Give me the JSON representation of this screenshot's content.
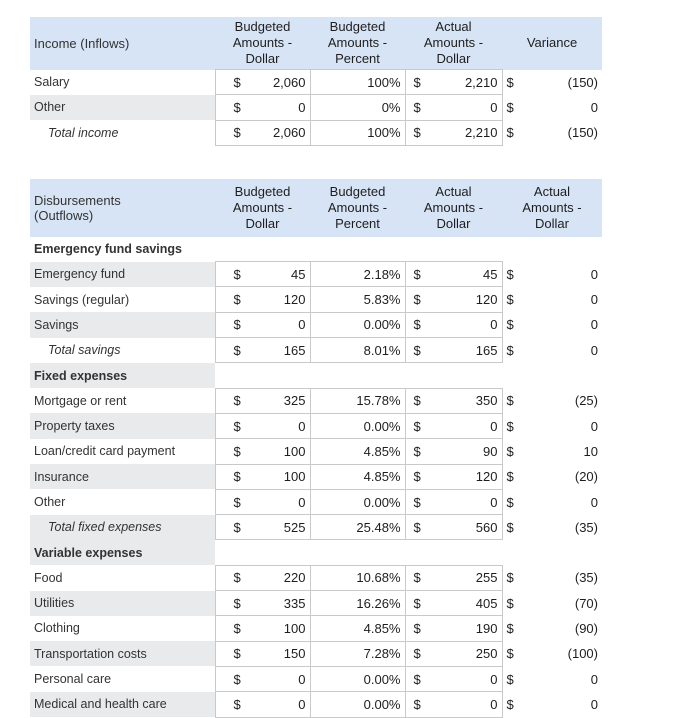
{
  "income": {
    "header": {
      "label": "Income (Inflows)",
      "col1": [
        "Budgeted",
        "Amounts -",
        "Dollar"
      ],
      "col2": [
        "Budgeted",
        "Amounts -",
        "Percent"
      ],
      "col3": [
        "Actual",
        "Amounts -",
        "Dollar"
      ],
      "col4": [
        "Variance"
      ]
    },
    "rows": [
      {
        "label": "Salary",
        "bd_sign": "$",
        "bd": "2,060",
        "bp": "100%",
        "ad_sign": "$",
        "ad": "2,210",
        "var_sign": "$",
        "var": "(150)"
      },
      {
        "label": "Other",
        "bd_sign": "$",
        "bd": "0",
        "bp": "0%",
        "ad_sign": "$",
        "ad": "0",
        "var_sign": "$",
        "var": "0"
      },
      {
        "label": "Total income",
        "bd_sign": "$",
        "bd": "2,060",
        "bp": "100%",
        "ad_sign": "$",
        "ad": "2,210",
        "var_sign": "$",
        "var": "(150)"
      }
    ]
  },
  "outflows": {
    "header": {
      "label": [
        "Disbursements",
        "(Outflows)"
      ],
      "col1": [
        "Budgeted",
        "Amounts -",
        "Dollar"
      ],
      "col2": [
        "Budgeted",
        "Amounts -",
        "Percent"
      ],
      "col3": [
        "Actual",
        "Amounts -",
        "Dollar"
      ],
      "col4": [
        "Actual",
        "Amounts -",
        "Dollar"
      ]
    },
    "sections": {
      "savings": "Emergency fund savings",
      "fixed": "Fixed expenses",
      "variable": "Variable expenses"
    },
    "savings_rows": [
      {
        "label": "Emergency fund",
        "bd_sign": "$",
        "bd": "45",
        "bp": "2.18%",
        "ad_sign": "$",
        "ad": "45",
        "var_sign": "$",
        "var": "0"
      },
      {
        "label": "Savings (regular)",
        "bd_sign": "$",
        "bd": "120",
        "bp": "5.83%",
        "ad_sign": "$",
        "ad": "120",
        "var_sign": "$",
        "var": "0"
      },
      {
        "label": "Savings",
        "bd_sign": "$",
        "bd": "0",
        "bp": "0.00%",
        "ad_sign": "$",
        "ad": "0",
        "var_sign": "$",
        "var": "0"
      },
      {
        "label": "Total savings",
        "bd_sign": "$",
        "bd": "165",
        "bp": "8.01%",
        "ad_sign": "$",
        "ad": "165",
        "var_sign": "$",
        "var": "0"
      }
    ],
    "fixed_rows": [
      {
        "label": "Mortgage or rent",
        "bd_sign": "$",
        "bd": "325",
        "bp": "15.78%",
        "ad_sign": "$",
        "ad": "350",
        "var_sign": "$",
        "var": "(25)"
      },
      {
        "label": "Property taxes",
        "bd_sign": "$",
        "bd": "0",
        "bp": "0.00%",
        "ad_sign": "$",
        "ad": "0",
        "var_sign": "$",
        "var": "0"
      },
      {
        "label": "Loan/credit card payment",
        "bd_sign": "$",
        "bd": "100",
        "bp": "4.85%",
        "ad_sign": "$",
        "ad": "90",
        "var_sign": "$",
        "var": "10"
      },
      {
        "label": "Insurance",
        "bd_sign": "$",
        "bd": "100",
        "bp": "4.85%",
        "ad_sign": "$",
        "ad": "120",
        "var_sign": "$",
        "var": "(20)"
      },
      {
        "label": "Other",
        "bd_sign": "$",
        "bd": "0",
        "bp": "0.00%",
        "ad_sign": "$",
        "ad": "0",
        "var_sign": "$",
        "var": "0"
      },
      {
        "label": "Total fixed expenses",
        "bd_sign": "$",
        "bd": "525",
        "bp": "25.48%",
        "ad_sign": "$",
        "ad": "560",
        "var_sign": "$",
        "var": "(35)"
      }
    ],
    "variable_rows": [
      {
        "label": "Food",
        "bd_sign": "$",
        "bd": "220",
        "bp": "10.68%",
        "ad_sign": "$",
        "ad": "255",
        "var_sign": "$",
        "var": "(35)"
      },
      {
        "label": "Utilities",
        "bd_sign": "$",
        "bd": "335",
        "bp": "16.26%",
        "ad_sign": "$",
        "ad": "405",
        "var_sign": "$",
        "var": "(70)"
      },
      {
        "label": "Clothing",
        "bd_sign": "$",
        "bd": "100",
        "bp": "4.85%",
        "ad_sign": "$",
        "ad": "190",
        "var_sign": "$",
        "var": "(90)"
      },
      {
        "label": "Transportation costs",
        "bd_sign": "$",
        "bd": "150",
        "bp": "7.28%",
        "ad_sign": "$",
        "ad": "250",
        "var_sign": "$",
        "var": "(100)"
      },
      {
        "label": "Personal care",
        "bd_sign": "$",
        "bd": "0",
        "bp": "0.00%",
        "ad_sign": "$",
        "ad": "0",
        "var_sign": "$",
        "var": "0"
      },
      {
        "label": "Medical and health care",
        "bd_sign": "$",
        "bd": "0",
        "bp": "0.00%",
        "ad_sign": "$",
        "ad": "0",
        "var_sign": "$",
        "var": "0"
      }
    ]
  }
}
